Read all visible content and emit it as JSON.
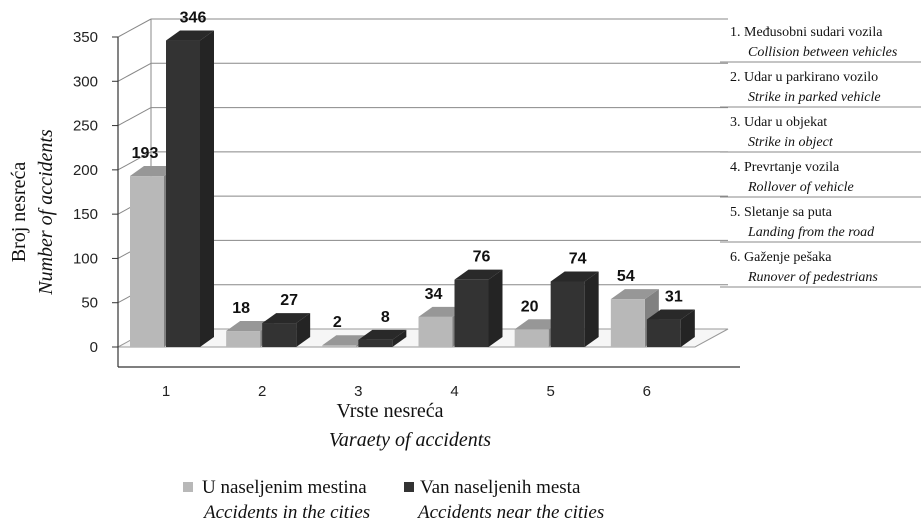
{
  "chart_data": {
    "type": "bar",
    "categories": [
      "1",
      "2",
      "3",
      "4",
      "5",
      "6"
    ],
    "series": [
      {
        "name": "U naseljenim mestina",
        "name_en": "Accidents in the cities",
        "color": "#b8b8b8",
        "values": [
          193,
          18,
          2,
          34,
          20,
          54
        ]
      },
      {
        "name": "Van naseljenih mesta",
        "name_en": "Accidents near the cities",
        "color": "#333333",
        "values": [
          346,
          27,
          8,
          76,
          74,
          31
        ]
      }
    ],
    "ylim": [
      0,
      350
    ],
    "yticks": [
      0,
      50,
      100,
      150,
      200,
      250,
      300,
      350
    ],
    "ylabel": "Broj nesreća",
    "ylabel_en": "Number of accidents",
    "xlabel": "Vrste nesreća",
    "xlabel_en": "Varaety of accidents",
    "grid": true,
    "legend_position": "bottom",
    "category_legend": [
      {
        "label": "1. Međusobni sudari vozila",
        "label_en": "Collision between vehicles"
      },
      {
        "label": "2. Udar u parkirano vozilo",
        "label_en": "Strike in parked vehicle"
      },
      {
        "label": "3. Udar u objekat",
        "label_en": "Strike in object"
      },
      {
        "label": "4. Prevrtanje vozila",
        "label_en": "Rollover of vehicle"
      },
      {
        "label": "5. Sletanje sa puta",
        "label_en": "Landing from the road"
      },
      {
        "label": "6. Gaženje pešaka",
        "label_en": "Runover of pedestrians"
      }
    ]
  }
}
